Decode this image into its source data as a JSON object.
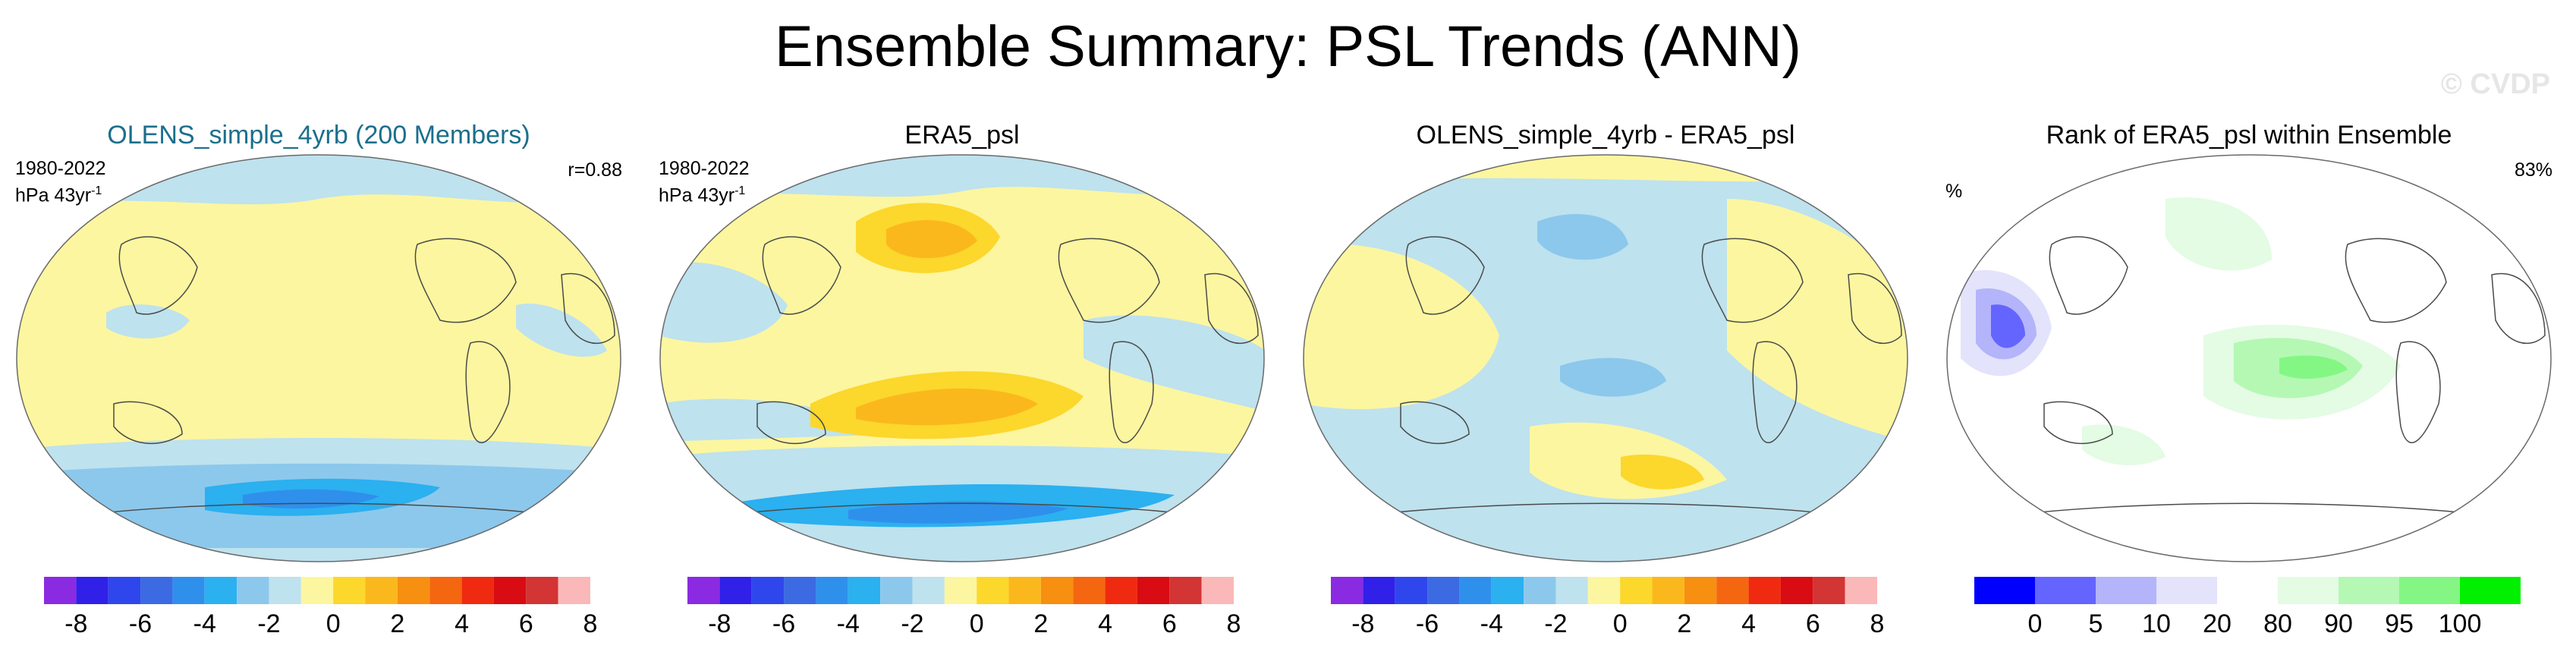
{
  "title": "Ensemble Summary: PSL Trends (ANN)",
  "watermark": "© CVDP",
  "panels": [
    {
      "title": "OLENS_simple_4yrb (200 Members)",
      "left_line1": "1980-2022",
      "left_line2": "hPa 43yr",
      "left_sup": "-1",
      "right_text": "r=0.88",
      "colorbar": {
        "colors": [
          "#8a2be2",
          "#3020e8",
          "#2f46ec",
          "#3c6ae2",
          "#2f90ec",
          "#2bb0f0",
          "#8cc8ec",
          "#bee2ee",
          "#fdf6a0",
          "#fcd72c",
          "#fbb81c",
          "#f78f10",
          "#f56610",
          "#f02a10",
          "#d80c12",
          "#d33434",
          "#fab8b8"
        ],
        "labels": [
          "-8",
          "-6",
          "-4",
          "-2",
          "0",
          "2",
          "4",
          "6",
          "8"
        ]
      },
      "pattern": "ens"
    },
    {
      "title": "ERA5_psl",
      "left_line1": "1980-2022",
      "left_line2": "hPa 43yr",
      "left_sup": "-1",
      "right_text": "",
      "colorbar": {
        "colors": [
          "#8a2be2",
          "#3020e8",
          "#2f46ec",
          "#3c6ae2",
          "#2f90ec",
          "#2bb0f0",
          "#8cc8ec",
          "#bee2ee",
          "#fdf6a0",
          "#fcd72c",
          "#fbb81c",
          "#f78f10",
          "#f56610",
          "#f02a10",
          "#d80c12",
          "#d33434",
          "#fab8b8"
        ],
        "labels": [
          "-8",
          "-6",
          "-4",
          "-2",
          "0",
          "2",
          "4",
          "6",
          "8"
        ]
      },
      "pattern": "obs"
    },
    {
      "title": "OLENS_simple_4yrb - ERA5_psl",
      "left_line1": "",
      "left_line2": "",
      "left_sup": "",
      "right_text": "",
      "colorbar": {
        "colors": [
          "#8a2be2",
          "#3020e8",
          "#2f46ec",
          "#3c6ae2",
          "#2f90ec",
          "#2bb0f0",
          "#8cc8ec",
          "#bee2ee",
          "#fdf6a0",
          "#fcd72c",
          "#fbb81c",
          "#f78f10",
          "#f56610",
          "#f02a10",
          "#d80c12",
          "#d33434",
          "#fab8b8"
        ],
        "labels": [
          "-8",
          "-6",
          "-4",
          "-2",
          "0",
          "2",
          "4",
          "6",
          "8"
        ]
      },
      "pattern": "diff"
    },
    {
      "title": "Rank of ERA5_psl within Ensemble",
      "left_line1": "%",
      "left_line2": "",
      "left_sup": "",
      "right_text": "83%",
      "colorbar": {
        "colors": [
          "#0000ff",
          "#6464ff",
          "#b4b4fa",
          "#e3e3fb",
          "#ffffff",
          "#e4fbe4",
          "#b4f8b4",
          "#84f684",
          "#00f000"
        ],
        "labels": [
          "0",
          "5",
          "10",
          "20",
          "80",
          "90",
          "95",
          "100"
        ]
      },
      "pattern": "rank"
    }
  ]
}
